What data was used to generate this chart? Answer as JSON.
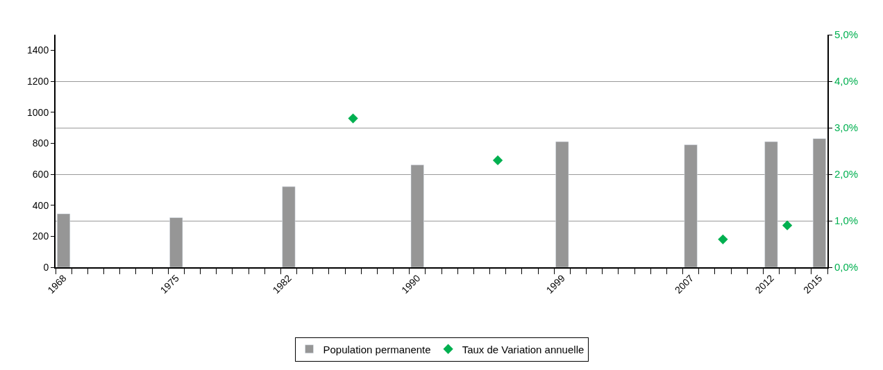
{
  "chart_data": {
    "type": "bar",
    "categories": [
      "1968",
      null,
      null,
      null,
      null,
      null,
      null,
      "1975",
      null,
      null,
      null,
      null,
      null,
      null,
      "1982",
      null,
      null,
      null,
      null,
      null,
      null,
      null,
      "1990",
      null,
      null,
      null,
      null,
      null,
      null,
      null,
      null,
      "1999",
      null,
      null,
      null,
      null,
      null,
      null,
      null,
      "2007",
      null,
      null,
      null,
      null,
      "2012",
      null,
      null,
      "2015"
    ],
    "series": [
      {
        "name": "Population permanente",
        "color": "#969696",
        "values": [
          345,
          null,
          null,
          null,
          null,
          null,
          null,
          320,
          null,
          null,
          null,
          null,
          null,
          null,
          520,
          null,
          null,
          null,
          null,
          null,
          null,
          null,
          660,
          null,
          null,
          null,
          null,
          null,
          null,
          null,
          null,
          810,
          null,
          null,
          null,
          null,
          null,
          null,
          null,
          790,
          null,
          null,
          null,
          null,
          810,
          null,
          null,
          830
        ]
      },
      {
        "name": "Taux de Variation annuelle",
        "type": "scatter",
        "axis": "y2",
        "color": "#00b050",
        "marker": "diamond",
        "values": [
          null,
          null,
          null,
          null,
          null,
          null,
          null,
          null,
          null,
          null,
          null,
          null,
          null,
          null,
          null,
          null,
          null,
          null,
          3.2,
          null,
          null,
          null,
          null,
          null,
          null,
          null,
          null,
          2.3,
          null,
          null,
          null,
          null,
          null,
          null,
          null,
          null,
          null,
          null,
          null,
          null,
          null,
          0.6,
          null,
          null,
          null,
          0.9,
          null,
          null
        ]
      }
    ],
    "ylim": [
      0,
      1500
    ],
    "yticks": [
      0,
      200,
      400,
      600,
      800,
      1000,
      1200,
      1400
    ],
    "y2lim": [
      0,
      5
    ],
    "y2ticks": [
      {
        "value": 0,
        "label": "0,0%"
      },
      {
        "value": 1,
        "label": "1,0%"
      },
      {
        "value": 2,
        "label": "2,0%"
      },
      {
        "value": 3,
        "label": "3,0%"
      },
      {
        "value": 4,
        "label": "4,0%"
      },
      {
        "value": 5,
        "label": "5,0%"
      }
    ],
    "grid": "y2",
    "legend": "bottom"
  }
}
